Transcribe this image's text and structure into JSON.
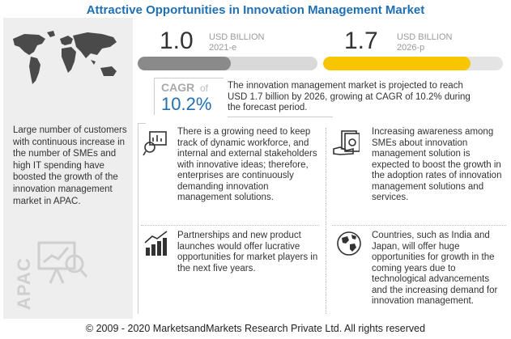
{
  "title": "Attractive Opportunities in Innovation Management Market",
  "market_2021": {
    "value": "1.0",
    "unit": "USD BILLION",
    "year": "2021-e",
    "fill": 0.52,
    "fill_color": "#8a8a8a",
    "track_color": "#d9d9d9"
  },
  "market_2026": {
    "value": "1.7",
    "unit": "USD BILLION",
    "year": "2026-p",
    "fill": 0.82,
    "fill_color": "#f7c600",
    "track_color": "#e4e4e4"
  },
  "cagr": {
    "label": "CAGR",
    "of": "of",
    "value": "10.2%",
    "text": "The innovation management market is projected to reach USD 1.7 billion by 2026, growing at CAGR of 10.2% during the forecast period."
  },
  "left_panel": {
    "text": "Large number of customers with continuous increase in the number of SMEs and high IT spending have boosted the growth of the innovation management market in APAC.",
    "region": "APAC"
  },
  "opportunities": [
    {
      "icon": "workforce-tracking-icon",
      "text": "There is a growing need to keep track of dynamic workforce, and internal and external stakeholders with innovative ideas; therefore, enterprises are continuously demanding innovation management solutions."
    },
    {
      "icon": "money-hand-icon",
      "text": "Increasing awareness among SMEs about innovation management solution is expected to boost the growth in the adoption rates of innovation management solutions and services."
    },
    {
      "icon": "growth-chart-icon",
      "text": "Partnerships and new product launches would offer lucrative opportunities for market players in the next five years."
    },
    {
      "icon": "globe-icon",
      "text": "Countries, such as India and Japan, will offer huge opportunities for growth in the coming years due to technological advancements and the increasing demand for innovation management."
    }
  ],
  "footer": "© 2009 - 2020 MarketsandMarkets Research Private Ltd. All rights reserved"
}
